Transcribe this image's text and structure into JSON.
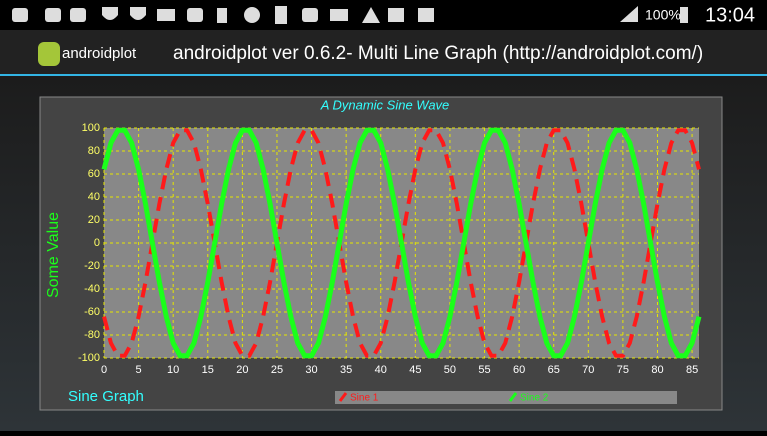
{
  "status_bar": {
    "battery": "100%",
    "time": "13:04"
  },
  "app_bar": {
    "logo": "androidplot",
    "title": "androidplot ver 0.6.2- Multi Line Graph (http://androidplot.com/)"
  },
  "chart_data": {
    "type": "line",
    "title": "A Dynamic Sine Wave",
    "y_label": "Some Value",
    "x_label": "Sine Graph",
    "x": [
      0,
      1,
      2,
      3,
      4,
      5,
      6,
      7,
      8,
      9,
      10,
      11,
      12,
      13,
      14,
      15,
      16,
      17,
      18,
      19,
      20,
      21,
      22,
      23,
      24,
      25,
      26,
      27,
      28,
      29,
      30,
      31,
      32,
      33,
      34,
      35,
      36,
      37,
      38,
      39,
      40,
      41,
      42,
      43,
      44,
      45,
      46,
      47,
      48,
      49,
      50,
      51,
      52,
      53,
      54,
      55,
      56,
      57,
      58,
      59,
      60,
      61,
      62,
      63,
      64,
      65,
      66,
      67,
      68,
      69,
      70,
      71,
      72,
      73,
      74,
      75,
      76,
      77,
      78,
      79,
      80,
      81,
      82,
      83,
      84,
      85,
      86
    ],
    "series": [
      {
        "name": "Sine 1",
        "color": "#ff1a1a",
        "dashed": true,
        "values": [
          -64,
          -87,
          -98,
          -98,
          -87,
          -64,
          -34,
          0,
          34,
          64,
          87,
          98,
          98,
          87,
          64,
          34,
          0,
          -34,
          -64,
          -87,
          -98,
          -98,
          -87,
          -64,
          -34,
          0,
          34,
          64,
          87,
          98,
          98,
          87,
          64,
          34,
          0,
          -34,
          -64,
          -87,
          -98,
          -98,
          -87,
          -64,
          -34,
          0,
          34,
          64,
          87,
          98,
          98,
          87,
          64,
          34,
          0,
          -34,
          -64,
          -87,
          -98,
          -98,
          -87,
          -64,
          -34,
          0,
          34,
          64,
          87,
          98,
          98,
          87,
          64,
          34,
          0,
          -34,
          -64,
          -87,
          -98,
          -98,
          -87,
          -64,
          -34,
          0,
          34,
          64,
          87,
          98,
          98,
          87,
          64
        ]
      },
      {
        "name": "Sine 2",
        "color": "#1aff1a",
        "dashed": false,
        "values": [
          64,
          87,
          98,
          98,
          87,
          64,
          34,
          0,
          -34,
          -64,
          -87,
          -98,
          -98,
          -87,
          -64,
          -34,
          0,
          34,
          64,
          87,
          98,
          98,
          87,
          64,
          34,
          0,
          -34,
          -64,
          -87,
          -98,
          -98,
          -87,
          -64,
          -34,
          0,
          34,
          64,
          87,
          98,
          98,
          87,
          64,
          34,
          0,
          -34,
          -64,
          -87,
          -98,
          -98,
          -87,
          -64,
          -34,
          0,
          34,
          64,
          87,
          98,
          98,
          87,
          64,
          34,
          0,
          -34,
          -64,
          -87,
          -98,
          -98,
          -87,
          -64,
          -34,
          0,
          34,
          64,
          87,
          98,
          98,
          87,
          64,
          34,
          0,
          -34,
          -64,
          -87,
          -98,
          -98,
          -87,
          -64
        ]
      }
    ],
    "xlim": [
      0,
      86
    ],
    "ylim": [
      -100,
      100
    ],
    "xticks": [
      0,
      5,
      10,
      15,
      20,
      25,
      30,
      35,
      40,
      45,
      50,
      55,
      60,
      65,
      70,
      75,
      80,
      85
    ],
    "yticks": [
      -100,
      -80,
      -60,
      -40,
      -20,
      0,
      20,
      40,
      60,
      80,
      100
    ],
    "grid": true
  }
}
